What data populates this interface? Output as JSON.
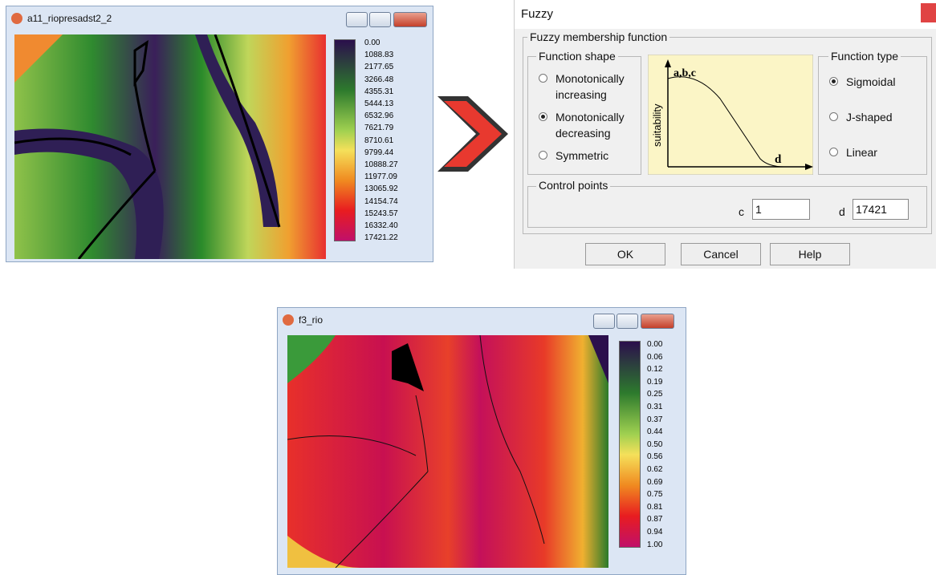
{
  "windows": [
    {
      "title": "a11_riopresadst2_2",
      "legend": [
        "0.00",
        "1088.83",
        "2177.65",
        "3266.48",
        "4355.31",
        "5444.13",
        "6532.96",
        "7621.79",
        "8710.61",
        "9799.44",
        "10888.27",
        "11977.09",
        "13065.92",
        "14154.74",
        "15243.57",
        "16332.40",
        "17421.22"
      ]
    },
    {
      "title": "f3_rio",
      "legend": [
        "0.00",
        "0.06",
        "0.12",
        "0.19",
        "0.25",
        "0.31",
        "0.37",
        "0.44",
        "0.50",
        "0.56",
        "0.62",
        "0.69",
        "0.75",
        "0.81",
        "0.87",
        "0.94",
        "1.00"
      ]
    }
  ],
  "dialog": {
    "title": "Fuzzy",
    "group": "Fuzzy membership function",
    "function_shape": {
      "label": "Function shape",
      "options": [
        "Monotonically increasing",
        "Monotonically decreasing",
        "Symmetric"
      ],
      "selected": 1
    },
    "graph": {
      "peak_label": "a,b,c",
      "y_label": "suitability",
      "x_label": "d"
    },
    "function_type": {
      "label": "Function type",
      "options": [
        "Sigmoidal",
        "J-shaped",
        "Linear"
      ],
      "selected": 0
    },
    "control_points": {
      "label": "Control points",
      "c_label": "c",
      "c_value": "1",
      "d_label": "d",
      "d_value": "17421"
    },
    "buttons": [
      "OK",
      "Cancel",
      "Help"
    ]
  }
}
